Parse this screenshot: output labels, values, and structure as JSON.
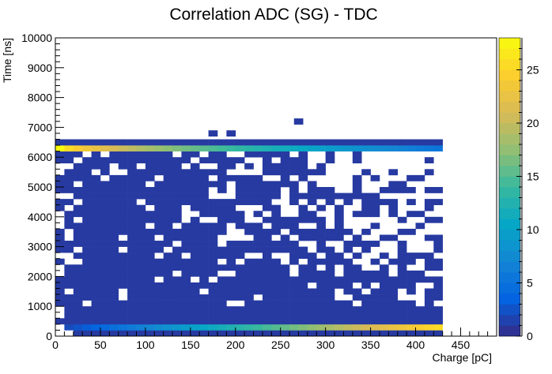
{
  "chart_data": {
    "type": "heatmap",
    "title": "Correlation ADC (SG) - TDC",
    "xlabel": "Charge [pC]",
    "ylabel": "Time [ns]",
    "xlim": [
      0,
      490
    ],
    "ylim": [
      0,
      10000
    ],
    "x_ticks": [
      "0",
      "50",
      "100",
      "150",
      "200",
      "250",
      "300",
      "350",
      "400",
      "450"
    ],
    "y_ticks": [
      "0",
      "1000",
      "2000",
      "3000",
      "4000",
      "5000",
      "6000",
      "7000",
      "8000",
      "9000",
      "10000"
    ],
    "zlim": [
      0,
      28
    ],
    "z_ticks": [
      "0",
      "5",
      "10",
      "15",
      "20",
      "25"
    ],
    "bin_width_x": 10,
    "bin_width_y": 200,
    "x_max_filled": 430,
    "palette": [
      "#352a87",
      "#0363e1",
      "#1485d4",
      "#06a7c6",
      "#38b99e",
      "#92bf73",
      "#d9ba56",
      "#fcce2e",
      "#f9fb0e"
    ],
    "features": {
      "bottom_band": {
        "y_range": [
          200,
          400
        ],
        "x_range": [
          10,
          430
        ],
        "z_start": 2,
        "z_end": 26
      },
      "top_band": {
        "y_range": [
          6200,
          6400
        ],
        "x_range": [
          0,
          430
        ],
        "z_start": 28,
        "z_end": 5
      },
      "upper_strip": {
        "y_range": [
          6400,
          6600
        ],
        "x_range": [
          0,
          430
        ],
        "z": 1
      },
      "sparse_points": [
        [
          170,
          6700
        ],
        [
          190,
          6700
        ],
        [
          265,
          7100
        ]
      ]
    },
    "grid": false,
    "legend": "color bar right"
  }
}
